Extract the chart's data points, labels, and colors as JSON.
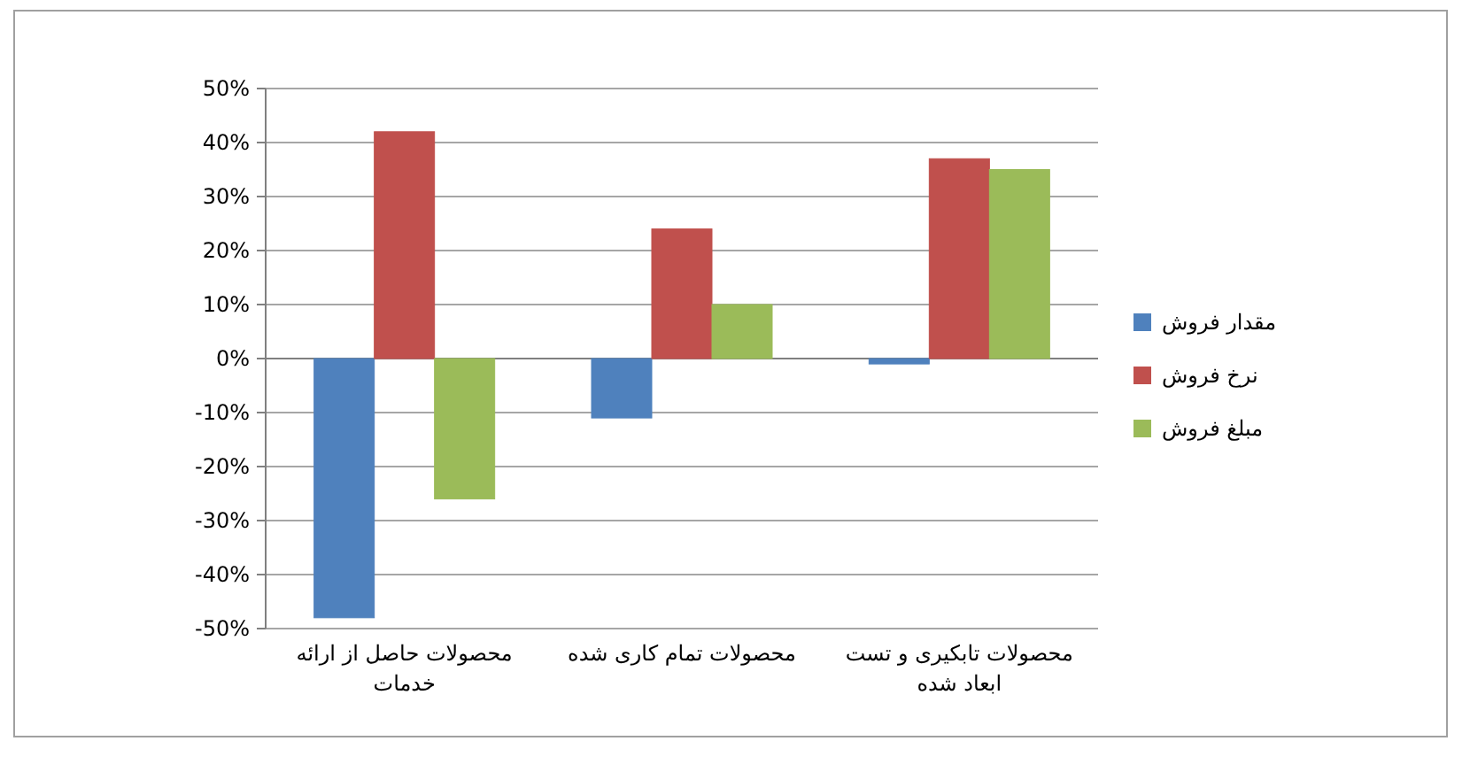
{
  "chart_data": {
    "type": "bar",
    "categories": [
      "محصولات حاصل از ارائه خدمات",
      "محصولات تمام کاری شده",
      "محصولات تابکیری و تست ابعاد شده"
    ],
    "series": [
      {
        "name": "مقدار فروش",
        "color": "#4f81bd",
        "values": [
          -48,
          -11,
          -1
        ]
      },
      {
        "name": "نرخ فروش",
        "color": "#c0504d",
        "values": [
          42,
          24,
          37
        ]
      },
      {
        "name": "مبلغ فروش",
        "color": "#9bbb59",
        "values": [
          -26,
          10,
          35
        ]
      }
    ],
    "ylim": [
      -50,
      50
    ],
    "yticks": [
      {
        "value": -50,
        "label": "-50%"
      },
      {
        "value": -40,
        "label": "-40%"
      },
      {
        "value": -30,
        "label": "-30%"
      },
      {
        "value": -20,
        "label": "-20%"
      },
      {
        "value": -10,
        "label": "-10%"
      },
      {
        "value": 0,
        "label": "0%"
      },
      {
        "value": 10,
        "label": "10%"
      },
      {
        "value": 20,
        "label": "20%"
      },
      {
        "value": 30,
        "label": "30%"
      },
      {
        "value": 40,
        "label": "40%"
      },
      {
        "value": 50,
        "label": "50%"
      }
    ],
    "grid": "y",
    "legend": "right"
  }
}
